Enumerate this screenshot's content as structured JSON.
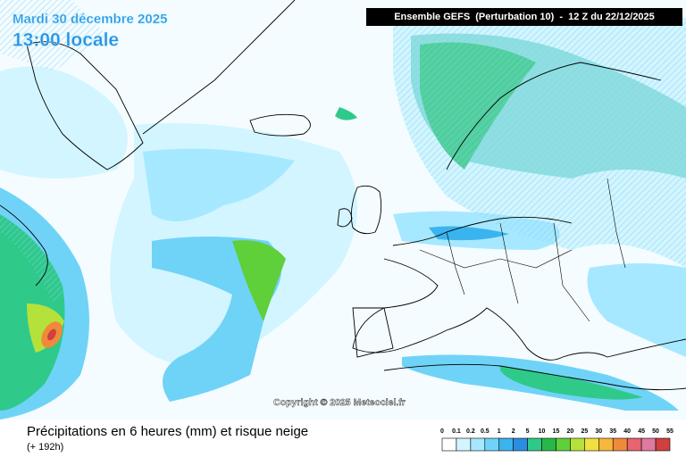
{
  "header": {
    "date": "Mardi 30 décembre 2025",
    "time": "13:00 locale",
    "model": "Ensemble GEFS  (Perturbation 10)  -  12 Z du 22/12/2025"
  },
  "copyright": "Copyright © 2025 Meteociel.fr",
  "footer": {
    "title": "Précipitations en 6 heures (mm) et risque neige",
    "lead": "(+ 192h)"
  },
  "legend": {
    "thresholds": [
      0,
      0.1,
      0.2,
      0.5,
      1,
      2,
      5,
      10,
      15,
      20,
      25,
      30,
      35,
      40,
      45,
      50,
      55
    ],
    "colors": [
      "#ffffff",
      "#d2f5ff",
      "#a6e8ff",
      "#6fd3f7",
      "#3ab4ef",
      "#2a8ee0",
      "#2fc98a",
      "#28b84a",
      "#5fcf3a",
      "#b4e23a",
      "#f0e040",
      "#f5b83a",
      "#f08a3a",
      "#e8646e",
      "#e07a9e",
      "#d04040"
    ]
  }
}
